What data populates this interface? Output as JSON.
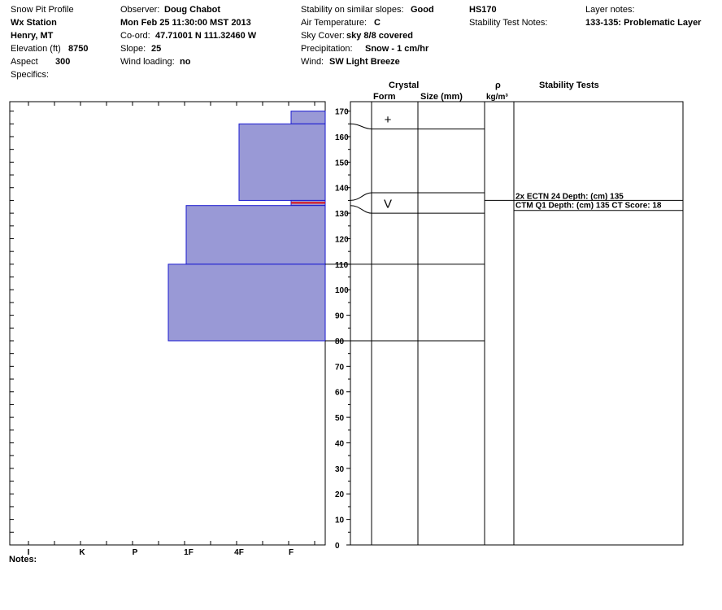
{
  "header": {
    "col1": {
      "title": "Snow Pit Profile",
      "station": "Wx Station",
      "location": "Henry, MT",
      "elevation_label": "Elevation (ft)",
      "elevation_value": "8750",
      "aspect_label": "Aspect",
      "aspect_value": "300",
      "specifics_label": "Specifics:"
    },
    "col2": {
      "observer_label": "Observer:",
      "observer_value": "Doug Chabot",
      "datetime": "Mon Feb 25 11:30:00 MST 2013",
      "coord_label": "Co-ord:",
      "coord_value": "47.71001 N 111.32460 W",
      "slope_label": "Slope:",
      "slope_value": "25",
      "wind_loading_label": "Wind loading:",
      "wind_loading_value": "no"
    },
    "col3": {
      "stability_label": "Stability on similar slopes:",
      "stability_value": "Good",
      "air_temp_label": "Air Temperature:",
      "air_temp_value": "C",
      "sky_label": "Sky Cover:",
      "sky_value": "sky 8/8 covered",
      "precip_label": "Precipitation:",
      "precip_value": "Snow - 1 cm/hr",
      "wind_label": "Wind:",
      "wind_value": "SW Light Breeze"
    },
    "col4": {
      "hs": "HS170",
      "stability_notes_label": "Stability Test Notes:"
    },
    "col5": {
      "layer_notes_label": "Layer notes:",
      "layer_notes_value": "133-135: Problematic Layer"
    }
  },
  "table_headers": {
    "crystal": "Crystal",
    "form": "Form",
    "size": "Size (mm)",
    "rho": "ρ",
    "rho_unit": "kg/m³",
    "stability_tests": "Stability Tests"
  },
  "notes_label": "Notes:",
  "chart_data": {
    "type": "bar",
    "orientation": "horizontal",
    "description_axis": "snow depth (cm)",
    "y_ticks": [
      170,
      160,
      150,
      140,
      130,
      120,
      110,
      100,
      90,
      80,
      70,
      60,
      50,
      40,
      30,
      20,
      10,
      0
    ],
    "ylim": [
      0,
      170
    ],
    "x_hardness_labels": [
      "I",
      "K",
      "P",
      "1F",
      "4F",
      "F"
    ],
    "layers": [
      {
        "bottom": 165,
        "top": 170,
        "hardness": "F"
      },
      {
        "bottom": 135,
        "top": 165,
        "hardness": "4F"
      },
      {
        "bottom": 133,
        "top": 135,
        "hardness": "F"
      },
      {
        "bottom": 110,
        "top": 133,
        "hardness": "1F+"
      },
      {
        "bottom": 80,
        "top": 110,
        "hardness": "P-"
      }
    ],
    "layer_boundaries": [
      163,
      138,
      130,
      110,
      80
    ],
    "boundary_connectors": [
      {
        "from": 165,
        "to": 163
      },
      {
        "from": 135,
        "to": 138
      },
      {
        "from": 133,
        "to": 130
      }
    ],
    "problem_layer": 135,
    "crystal_forms": [
      {
        "depth": 167,
        "symbol": "+"
      },
      {
        "depth": 134,
        "symbol": "V"
      }
    ],
    "stability_tests": [
      {
        "depth": 135,
        "text": "2x ECTN 24   Depth: (cm) 135"
      },
      {
        "depth": 133,
        "text": "CTM Q1 Depth: (cm) 135 CT Score: 18"
      }
    ],
    "colors": {
      "fill": "#9999d6",
      "stroke": "#1a1ad0",
      "problem": "#e01010",
      "line": "#000000"
    }
  }
}
